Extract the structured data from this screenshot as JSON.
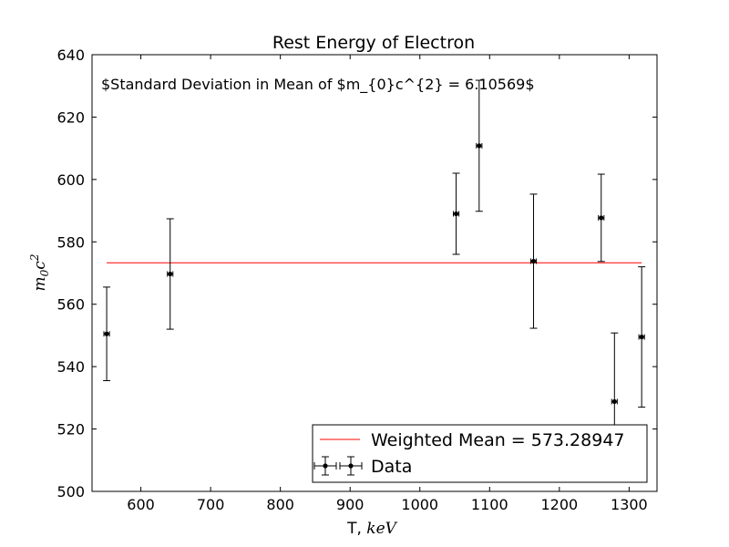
{
  "chart_data": {
    "type": "scatter",
    "title": "Rest Energy of Electron",
    "xlabel": {
      "prefix": "T, ",
      "math": "keV"
    },
    "ylabel": {
      "base": "m",
      "sub": "0",
      "mid": "c",
      "sup": "2"
    },
    "annotation": "$Standard Deviation in Mean of $m_{0}c^{2} = 6.10569$",
    "xlim": [
      530,
      1340
    ],
    "ylim": [
      500,
      640
    ],
    "xticks": [
      600,
      700,
      800,
      900,
      1000,
      1100,
      1200,
      1300
    ],
    "yticks": [
      500,
      520,
      540,
      560,
      580,
      600,
      620,
      640
    ],
    "grid": false,
    "legend_position": "lower-right",
    "series": [
      {
        "name": "Data",
        "marker": "dot",
        "color": "#000000",
        "x": [
          551,
          642,
          1052,
          1085,
          1163,
          1260,
          1279,
          1318
        ],
        "y": [
          550.5,
          569.7,
          589.0,
          610.8,
          573.8,
          587.7,
          528.8,
          549.5
        ],
        "y_err": [
          15,
          17.7,
          13,
          21,
          21.5,
          14,
          22,
          22.5
        ],
        "x_err": [
          4,
          4,
          4,
          4,
          4,
          4,
          4,
          4
        ]
      }
    ],
    "reference_lines": [
      {
        "name": "Weighted Mean = 573.28947",
        "color": "#ff0000",
        "y": 573.28947,
        "x_from": 551,
        "x_to": 1318
      }
    ]
  }
}
